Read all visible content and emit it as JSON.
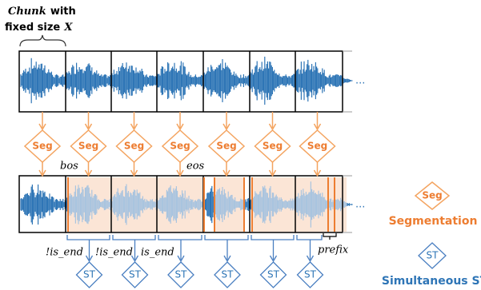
{
  "chunk_label": {
    "word": "Chunk",
    "rest": "with",
    "line2": "fixed size",
    "var": "X"
  },
  "segmenters": [
    "Seg",
    "Seg",
    "Seg",
    "Seg",
    "Seg",
    "Seg",
    "Seg"
  ],
  "markers": {
    "bos": "bos",
    "eos": "eos"
  },
  "conditions": [
    "!is_end",
    "!is_end",
    "is_end"
  ],
  "prefix": "prefix",
  "translators": [
    "ST",
    "ST",
    "ST",
    "ST",
    "ST",
    "ST"
  ],
  "ellipsis": [
    "...",
    "..."
  ],
  "legend": {
    "seg_icon": "Seg",
    "seg_label": "Segmentation",
    "st_icon": "ST",
    "st_label": "Simultaneous ST"
  }
}
